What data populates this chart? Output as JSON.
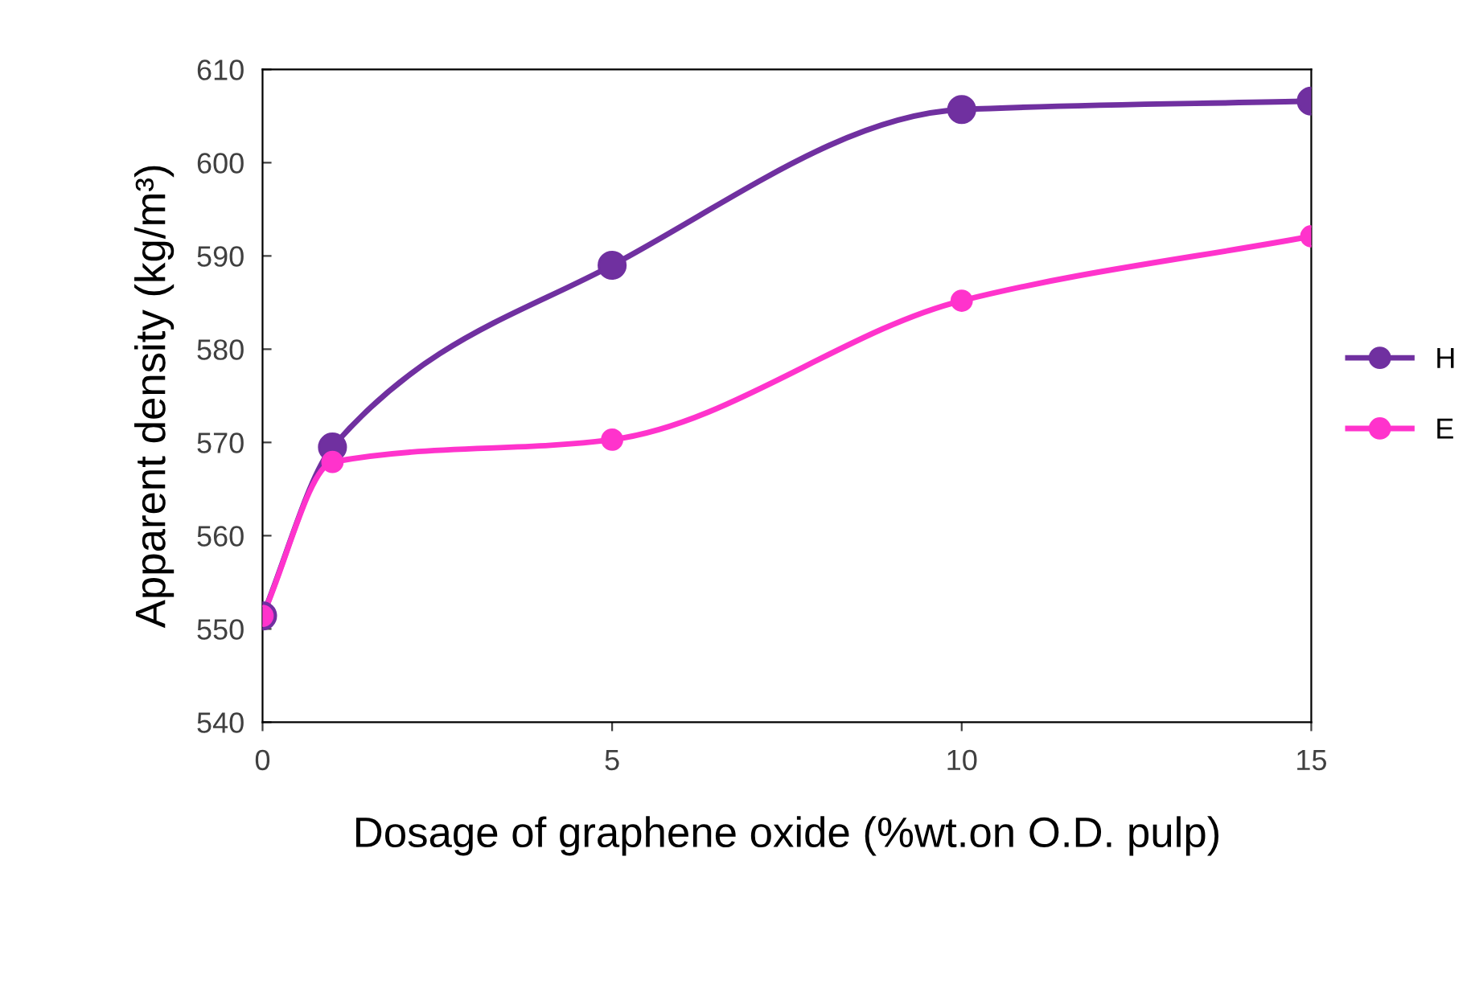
{
  "chart_data": {
    "type": "line",
    "xlabel": "Dosage of graphene oxide (%wt.on O.D. pulp)",
    "ylabel": "Apparent density (kg/m³)",
    "x": [
      0,
      1,
      5,
      10,
      15
    ],
    "series": [
      {
        "name": "H",
        "color": "#7030a0",
        "values": [
          551.4,
          569.5,
          589.0,
          605.7,
          606.6
        ]
      },
      {
        "name": "E",
        "color": "#ff33cc",
        "values": [
          551.4,
          567.9,
          570.3,
          585.2,
          592.1
        ]
      }
    ],
    "xlim": [
      0,
      15
    ],
    "xticks": [
      0,
      5,
      10,
      15
    ],
    "ylim": [
      540,
      610
    ],
    "yticks": [
      540,
      550,
      560,
      570,
      580,
      590,
      600,
      610
    ],
    "marker": "circle",
    "line_style": "solid",
    "grid": false,
    "legend": "right"
  }
}
